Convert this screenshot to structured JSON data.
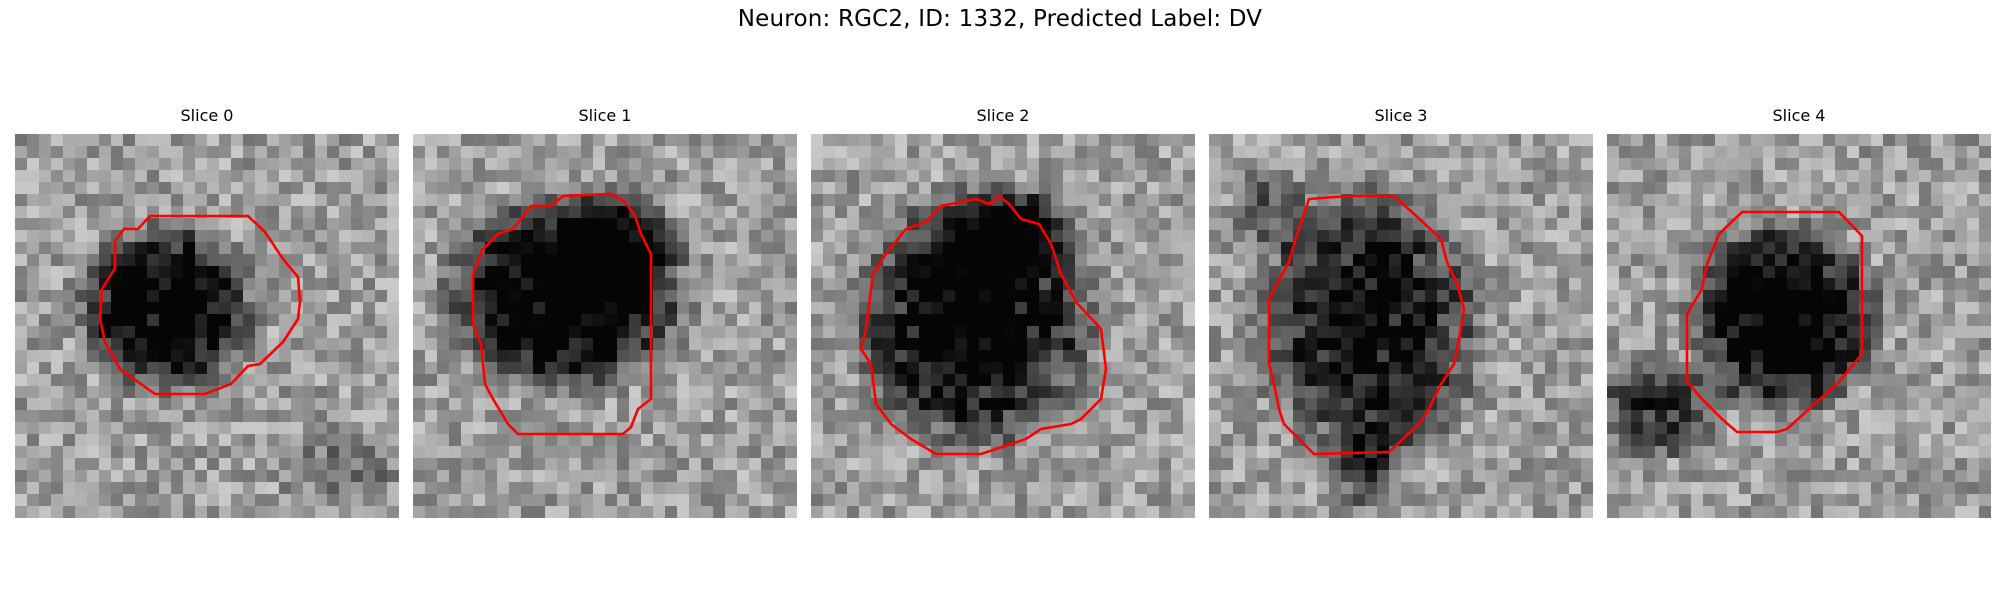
{
  "figure": {
    "title": "Neuron: RGC2, ID: 1332, Predicted Label: DV"
  },
  "panels": [
    {
      "title": "Slice 0",
      "contour_color": "#ff0000"
    },
    {
      "title": "Slice 1",
      "contour_color": "#ff0000"
    },
    {
      "title": "Slice 2",
      "contour_color": "#ff0000"
    },
    {
      "title": "Slice 3",
      "contour_color": "#ff0000"
    },
    {
      "title": "Slice 4",
      "contour_color": "#ff0000"
    }
  ]
}
